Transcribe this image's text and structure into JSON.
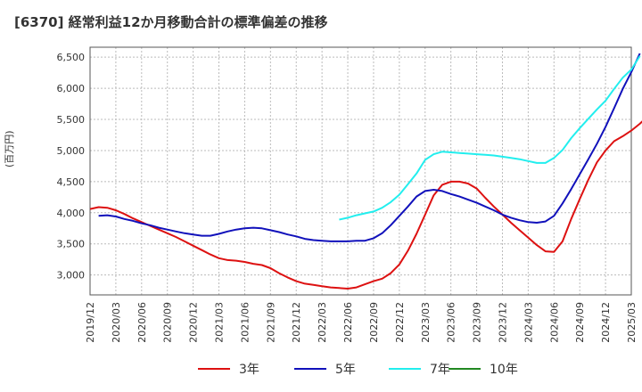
{
  "chart_data": {
    "type": "line",
    "title": "[6370]  経常利益12か月移動合計の標準偏差の推移",
    "ylabel": "(百万円)",
    "xlabel": "",
    "x_ticks": [
      "2019/12",
      "2020/03",
      "2020/06",
      "2020/09",
      "2020/12",
      "2021/03",
      "2021/06",
      "2021/09",
      "2021/12",
      "2022/03",
      "2022/06",
      "2022/09",
      "2022/12",
      "2023/03",
      "2023/06",
      "2023/09",
      "2023/12",
      "2024/03",
      "2024/06",
      "2024/09",
      "2024/12",
      "2025/03"
    ],
    "y_ticks": [
      3000,
      3500,
      4000,
      4500,
      5000,
      5500,
      6000,
      6500
    ],
    "ylim": [
      2680,
      6660
    ],
    "grid": true,
    "legend_position": "bottom",
    "series": [
      {
        "name": "3年",
        "color": "#dd1111",
        "start": "2019/12",
        "values": [
          4060,
          4090,
          4080,
          4040,
          3980,
          3910,
          3850,
          3790,
          3730,
          3670,
          3610,
          3540,
          3470,
          3400,
          3330,
          3270,
          3240,
          3230,
          3210,
          3180,
          3160,
          3110,
          3030,
          2960,
          2900,
          2860,
          2840,
          2820,
          2800,
          2790,
          2780,
          2800,
          2850,
          2900,
          2940,
          3030,
          3170,
          3390,
          3660,
          3970,
          4280,
          4450,
          4500,
          4500,
          4470,
          4390,
          4240,
          4100,
          3970,
          3840,
          3720,
          3600,
          3480,
          3380,
          3370,
          3540,
          3900,
          4220,
          4530,
          4810,
          5000,
          5150,
          5230,
          5320,
          5430,
          5560
        ]
      },
      {
        "name": "5年",
        "color": "#1111bb",
        "start": "2019/12",
        "values": [
          null,
          3950,
          3960,
          3940,
          3900,
          3870,
          3830,
          3800,
          3760,
          3730,
          3700,
          3670,
          3650,
          3630,
          3630,
          3660,
          3700,
          3730,
          3750,
          3760,
          3750,
          3720,
          3690,
          3650,
          3620,
          3580,
          3560,
          3550,
          3540,
          3540,
          3540,
          3550,
          3550,
          3590,
          3670,
          3800,
          3950,
          4100,
          4260,
          4350,
          4370,
          4350,
          4300,
          4260,
          4210,
          4160,
          4100,
          4040,
          3970,
          3920,
          3880,
          3850,
          3840,
          3860,
          3950,
          4150,
          4380,
          4620,
          4860,
          5110,
          5380,
          5680,
          5990,
          6260,
          6560
        ]
      },
      {
        "name": "7年",
        "color": "#22eeee",
        "start": "2019/12",
        "values": [
          null,
          null,
          null,
          null,
          null,
          null,
          null,
          null,
          null,
          null,
          null,
          null,
          null,
          null,
          null,
          null,
          null,
          null,
          null,
          null,
          null,
          null,
          null,
          null,
          null,
          null,
          null,
          null,
          null,
          3890,
          3920,
          3960,
          3990,
          4020,
          4080,
          4170,
          4290,
          4460,
          4630,
          4850,
          4940,
          4980,
          4970,
          4960,
          4950,
          4940,
          4930,
          4920,
          4900,
          4880,
          4860,
          4830,
          4800,
          4800,
          4880,
          5010,
          5200,
          5360,
          5510,
          5660,
          5800,
          5990,
          6170,
          6300,
          6520
        ]
      },
      {
        "name": "10年",
        "color": "#228822",
        "start": "2019/12",
        "values": []
      }
    ]
  }
}
